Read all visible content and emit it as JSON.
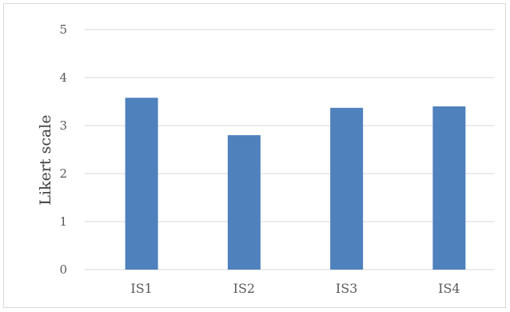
{
  "chart_data": {
    "type": "bar",
    "categories": [
      "IS1",
      "IS2",
      "IS3",
      "IS4"
    ],
    "values": [
      3.58,
      2.8,
      3.37,
      3.4
    ],
    "title": "",
    "xlabel": "",
    "ylabel": "Likert scale",
    "ylim": [
      0,
      5
    ],
    "yticks": [
      "0",
      "1",
      "2",
      "3",
      "4",
      "5"
    ],
    "grid": true,
    "legend": "none",
    "bar_color": "#4f81bd",
    "grid_color": "#d9d9d9"
  }
}
